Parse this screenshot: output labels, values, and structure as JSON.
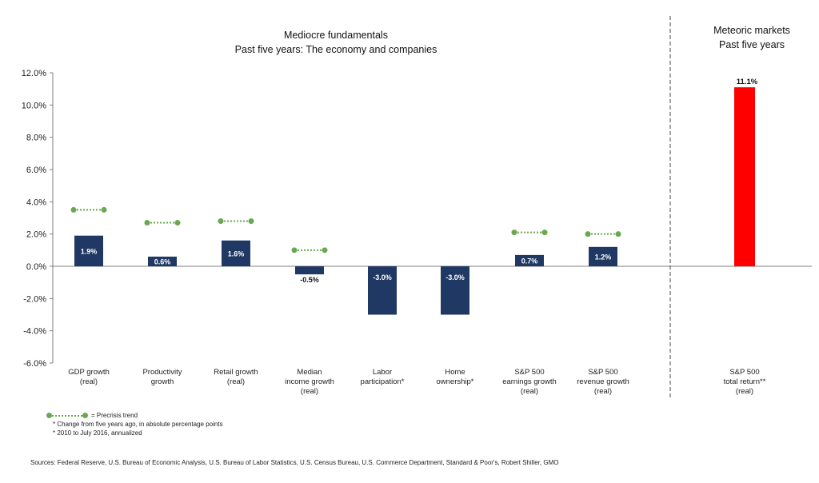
{
  "chart_data": {
    "type": "bar",
    "panels": [
      {
        "title": "Mediocre fundamentals",
        "subtitle": "Past five years: The economy and companies",
        "categories": [
          [
            "GDP growth",
            "(real)"
          ],
          [
            "Productivity",
            "growth"
          ],
          [
            "Retail growth",
            "(real)"
          ],
          [
            "Median",
            "income growth",
            "(real)"
          ],
          [
            "Labor",
            "participation*"
          ],
          [
            "Home",
            "ownership*"
          ],
          [
            "S&P 500",
            "earnings growth",
            "(real)"
          ],
          [
            "S&P 500",
            "revenue growth",
            "(real)"
          ]
        ],
        "values": [
          1.9,
          0.6,
          1.6,
          -0.5,
          -3.0,
          -3.0,
          0.7,
          1.2
        ],
        "labels": [
          "1.9%",
          "0.6%",
          "1.6%",
          "-0.5%",
          "-3.0%",
          "-3.0%",
          "0.7%",
          "1.2%"
        ],
        "precrisis_trend": [
          3.5,
          2.7,
          2.8,
          1.0,
          null,
          null,
          2.1,
          2.0
        ],
        "bar_color": "#1f3864"
      },
      {
        "title": "Meteoric markets",
        "subtitle": "Past five years",
        "categories": [
          [
            "S&P 500",
            "total return**",
            "(real)"
          ]
        ],
        "values": [
          11.1
        ],
        "labels": [
          "11.1%"
        ],
        "bar_color": "#ff0000"
      }
    ],
    "ylim": [
      -6,
      12
    ],
    "yticks": [
      -6,
      -4,
      -2,
      0,
      2,
      4,
      6,
      8,
      10,
      12
    ],
    "ytick_labels": [
      "-6.0%",
      "-4.0%",
      "-2.0%",
      "0.0%",
      "2.0%",
      "4.0%",
      "6.0%",
      "8.0%",
      "10.0%",
      "12.0%"
    ],
    "grid": false,
    "trend_color": "#6aa84f",
    "legend": {
      "label": "= Precrisis trend",
      "placement": "bottom-left"
    }
  },
  "notes": {
    "note1": "* Change from five years ago, in absolute percentage points",
    "note2": "* 2010 to July 2016, annualized"
  },
  "sources": "Sources: Federal Reserve, U.S. Bureau of Economic Analysis, U.S. Bureau of Labor Statistics, U.S. Census Bureau, U.S. Commerce Department, Standard & Poor's, Robert Shiller, GMO"
}
